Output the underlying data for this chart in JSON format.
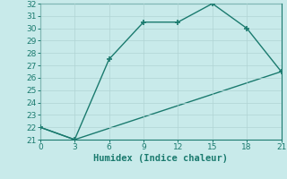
{
  "line1_x": [
    0,
    3,
    6,
    9,
    12,
    15,
    18,
    21
  ],
  "line1_y": [
    22,
    21,
    27.5,
    30.5,
    30.5,
    32,
    30,
    26.5
  ],
  "line2_x": [
    0,
    3,
    21
  ],
  "line2_y": [
    22,
    21,
    26.5
  ],
  "color": "#1a7a6e",
  "bg_color": "#c8eaea",
  "grid_color": "#b0d4d4",
  "xlabel": "Humidex (Indice chaleur)",
  "xlim": [
    0,
    21
  ],
  "ylim": [
    21,
    32
  ],
  "xticks": [
    0,
    3,
    6,
    9,
    12,
    15,
    18,
    21
  ],
  "yticks": [
    21,
    22,
    23,
    24,
    25,
    26,
    27,
    28,
    29,
    30,
    31,
    32
  ],
  "marker": "+",
  "markersize": 4,
  "linewidth": 1.0,
  "xlabel_fontsize": 7.5,
  "tick_fontsize": 6.5
}
